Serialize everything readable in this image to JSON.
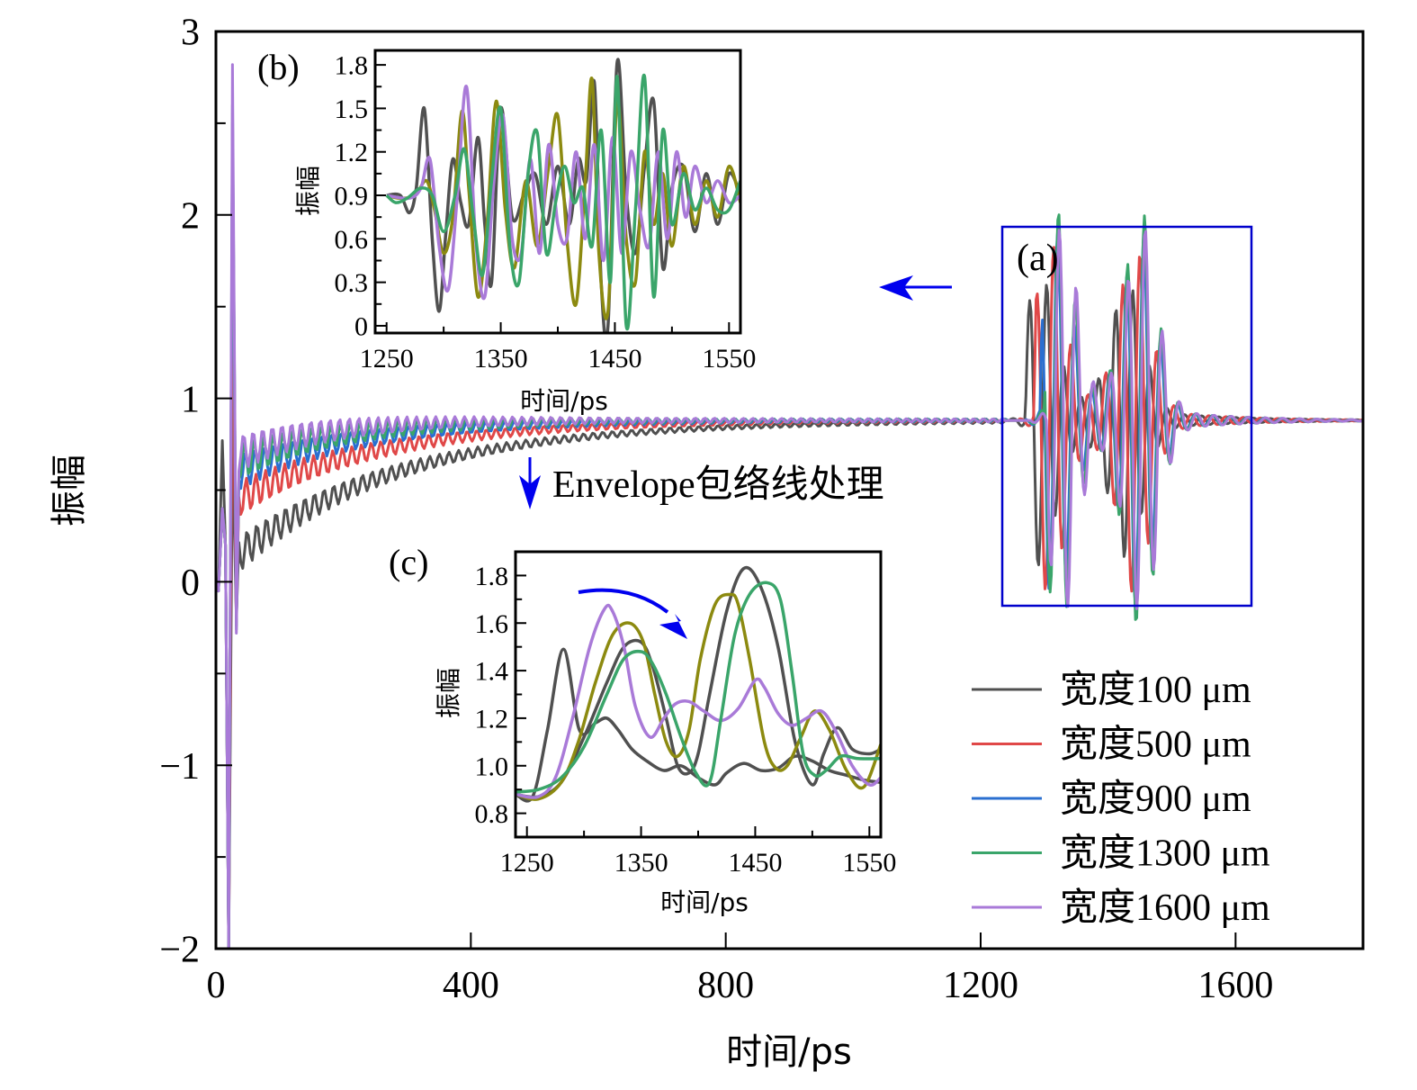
{
  "chart_data": [
    {
      "id": "main",
      "type": "line",
      "title": "",
      "xlabel": "时间/ps",
      "ylabel": "振幅",
      "xlim": [
        0,
        1800
      ],
      "ylim": [
        -2,
        3
      ],
      "xticks": [
        0,
        400,
        800,
        1200,
        1600
      ],
      "yticks": [
        3,
        2,
        1,
        0,
        -1,
        -2
      ],
      "ytick_labels": [
        "3",
        "2",
        "1",
        "0",
        "−1",
        "−2"
      ],
      "grid": false,
      "legend_position": "bottom-right",
      "legend": [
        {
          "label": "宽度100 μm",
          "color": "#505050"
        },
        {
          "label": "宽度500 μm",
          "color": "#e04848"
        },
        {
          "label": "宽度900 μm",
          "color": "#2a6fd0"
        },
        {
          "label": "宽度1300 μm",
          "color": "#3aa56a"
        },
        {
          "label": "宽度1600 μm",
          "color": "#a97ad8"
        }
      ],
      "series": [
        {
          "name": "宽度100 μm",
          "color": "#505050",
          "initial_peak": 0.77,
          "initial_min": -2.0,
          "early_baseline": 0.15,
          "baseline": 0.88,
          "echo_start": 1270,
          "echo_peak": 1.48,
          "echo_min": -0.1
        },
        {
          "name": "宽度500 μm",
          "color": "#e04848",
          "initial_peak": 1.5,
          "initial_min": -2.0,
          "early_baseline": 0.45,
          "baseline": 0.88,
          "echo_start": 1285,
          "echo_peak": 1.65,
          "echo_min": -0.15
        },
        {
          "name": "宽度900 μm",
          "color": "#2a6fd0",
          "initial_peak": 2.5,
          "initial_min": -2.0,
          "early_baseline": 0.6,
          "baseline": 0.88,
          "echo_start": 1295,
          "echo_peak": 1.72,
          "echo_min": -0.2
        },
        {
          "name": "宽度1300 μm",
          "color": "#3aa56a",
          "initial_peak": 2.6,
          "initial_min": -2.0,
          "early_baseline": 0.65,
          "baseline": 0.88,
          "echo_start": 1300,
          "echo_peak": 1.82,
          "echo_min": -0.25
        },
        {
          "name": "宽度1600 μm",
          "color": "#a97ad8",
          "initial_peak": 2.82,
          "initial_min": -2.0,
          "early_baseline": 0.7,
          "baseline": 0.88,
          "echo_start": 1305,
          "echo_peak": 1.75,
          "echo_min": -0.22
        }
      ],
      "annotations": [
        {
          "text": "(a)",
          "kind": "panel-label"
        },
        {
          "text": "Envelope包络线处理",
          "kind": "arrow-label",
          "arrow": "down"
        },
        {
          "text": "",
          "kind": "arrow",
          "arrow": "left"
        }
      ],
      "highlight_box": {
        "x_range": [
          1240,
          1530
        ],
        "y_range": [
          -0.1,
          1.9
        ],
        "color": "#0000cc"
      }
    },
    {
      "id": "inset-b",
      "type": "line",
      "panel_label": "(b)",
      "xlabel": "时间/ps",
      "ylabel": "振幅",
      "xlim": [
        1240,
        1560
      ],
      "ylim": [
        -0.05,
        1.9
      ],
      "xticks": [
        1250,
        1350,
        1450,
        1550
      ],
      "yticks": [
        0,
        0.3,
        0.6,
        0.9,
        1.2,
        1.5,
        1.8
      ],
      "ytick_labels": [
        "0",
        "0.3",
        "0.6",
        "0.9",
        "1.2",
        "1.5",
        "1.8"
      ],
      "grid": false,
      "series": [
        {
          "name": "dark-gray",
          "color": "#505050",
          "x": [
            1250,
            1262,
            1270,
            1276,
            1283,
            1290,
            1296,
            1302,
            1308,
            1315,
            1322,
            1330,
            1336,
            1342,
            1350,
            1360,
            1370,
            1380,
            1390,
            1400,
            1410,
            1418,
            1425,
            1432,
            1438,
            1444,
            1452,
            1460,
            1468,
            1476,
            1484,
            1492,
            1500,
            1510,
            1520,
            1530,
            1540,
            1550,
            1560
          ],
          "y": [
            0.9,
            0.9,
            0.78,
            0.95,
            1.5,
            0.6,
            0.1,
            0.65,
            1.15,
            0.85,
            0.7,
            1.3,
            0.7,
            0.3,
            1.5,
            0.75,
            0.9,
            1.05,
            0.7,
            1.1,
            0.7,
            1.15,
            1.0,
            1.68,
            0.3,
            0.0,
            1.82,
            0.9,
            0.5,
            1.1,
            1.55,
            0.4,
            0.95,
            1.1,
            0.65,
            1.05,
            0.7,
            1.05,
            0.9
          ]
        },
        {
          "name": "olive",
          "color": "#8c8a10",
          "x": [
            1250,
            1262,
            1275,
            1285,
            1292,
            1300,
            1308,
            1316,
            1322,
            1330,
            1338,
            1346,
            1354,
            1362,
            1372,
            1382,
            1392,
            1400,
            1408,
            1416,
            1424,
            1430,
            1436,
            1444,
            1452,
            1460,
            1468,
            1476,
            1484,
            1492,
            1500,
            1510,
            1520,
            1530,
            1540,
            1550,
            1560
          ],
          "y": [
            0.9,
            0.88,
            0.9,
            1.0,
            0.8,
            0.5,
            0.75,
            1.48,
            0.95,
            0.2,
            0.7,
            1.55,
            0.8,
            0.4,
            1.0,
            0.55,
            1.1,
            1.45,
            0.6,
            0.15,
            1.0,
            1.7,
            0.5,
            0.1,
            1.55,
            0.6,
            0.3,
            1.2,
            0.7,
            1.05,
            0.55,
            1.1,
            0.7,
            1.0,
            0.75,
            1.1,
            0.85
          ]
        },
        {
          "name": "purple",
          "color": "#a97ad8",
          "x": [
            1250,
            1270,
            1280,
            1288,
            1296,
            1304,
            1312,
            1320,
            1328,
            1336,
            1344,
            1352,
            1360,
            1368,
            1376,
            1384,
            1392,
            1400,
            1408,
            1416,
            1424,
            1432,
            1440,
            1448,
            1456,
            1464,
            1472,
            1480,
            1488,
            1496,
            1504,
            1512,
            1520,
            1530,
            1540,
            1550,
            1560
          ],
          "y": [
            0.9,
            0.88,
            0.95,
            1.15,
            0.55,
            0.25,
            0.9,
            1.65,
            0.6,
            0.2,
            1.0,
            1.45,
            0.6,
            0.5,
            1.15,
            0.5,
            1.25,
            0.7,
            0.6,
            1.2,
            0.6,
            1.25,
            0.45,
            1.3,
            0.5,
            1.2,
            0.8,
            0.55,
            1.2,
            0.6,
            1.2,
            0.75,
            1.1,
            0.85,
            1.0,
            0.85,
            0.9
          ]
        },
        {
          "name": "green",
          "color": "#3aa56a",
          "x": [
            1250,
            1258,
            1268,
            1280,
            1290,
            1300,
            1310,
            1318,
            1326,
            1334,
            1342,
            1350,
            1358,
            1366,
            1374,
            1382,
            1390,
            1398,
            1406,
            1414,
            1422,
            1430,
            1438,
            1446,
            1452,
            1460,
            1468,
            1476,
            1484,
            1492,
            1500,
            1510,
            1520,
            1530,
            1540,
            1550,
            1560
          ],
          "y": [
            0.9,
            0.85,
            0.88,
            0.95,
            0.9,
            0.65,
            0.9,
            1.22,
            0.75,
            0.35,
            1.0,
            1.5,
            0.55,
            0.3,
            1.05,
            1.33,
            0.5,
            0.85,
            1.1,
            0.85,
            0.95,
            0.55,
            1.35,
            0.3,
            1.72,
            0.0,
            0.8,
            1.72,
            0.2,
            1.35,
            0.7,
            1.05,
            0.8,
            0.95,
            0.8,
            0.8,
            1.0
          ]
        }
      ]
    },
    {
      "id": "inset-c",
      "type": "line",
      "panel_label": "(c)",
      "xlabel": "时间/ps",
      "ylabel": "振幅",
      "xlim": [
        1240,
        1560
      ],
      "ylim": [
        0.7,
        1.9
      ],
      "xticks": [
        1250,
        1350,
        1450,
        1550
      ],
      "yticks": [
        0.8,
        1.0,
        1.2,
        1.4,
        1.6,
        1.8
      ],
      "ytick_labels": [
        "0.8",
        "1.0",
        "1.2",
        "1.4",
        "1.6",
        "1.8"
      ],
      "grid": false,
      "annotation_arrow": "curved-right-down",
      "series": [
        {
          "name": "dark-gray-1",
          "color": "#505050",
          "x": [
            1240,
            1255,
            1268,
            1282,
            1296,
            1310,
            1320,
            1330,
            1342,
            1355,
            1370,
            1385,
            1400,
            1415,
            1425,
            1440,
            1455,
            1470,
            1485,
            1500,
            1515,
            1530,
            1545,
            1560
          ],
          "y": [
            0.88,
            0.87,
            1.15,
            1.49,
            1.15,
            1.18,
            1.2,
            1.15,
            1.07,
            1.02,
            0.98,
            1.0,
            0.95,
            0.92,
            0.97,
            1.01,
            0.98,
            0.99,
            1.04,
            1.02,
            0.98,
            0.96,
            0.94,
            0.93
          ]
        },
        {
          "name": "dark-gray-2",
          "color": "#505050",
          "x": [
            1240,
            1260,
            1280,
            1300,
            1320,
            1335,
            1350,
            1360,
            1372,
            1382,
            1392,
            1400,
            1410,
            1425,
            1440,
            1455,
            1470,
            1485,
            1500,
            1510,
            1522,
            1535,
            1550,
            1560
          ],
          "y": [
            0.88,
            0.87,
            0.93,
            1.12,
            1.35,
            1.5,
            1.52,
            1.42,
            1.2,
            1.0,
            0.97,
            1.05,
            1.3,
            1.65,
            1.83,
            1.75,
            1.5,
            1.1,
            0.92,
            1.05,
            1.16,
            1.07,
            1.05,
            1.07
          ]
        },
        {
          "name": "olive",
          "color": "#8c8a10",
          "x": [
            1240,
            1260,
            1280,
            1295,
            1310,
            1325,
            1340,
            1352,
            1362,
            1372,
            1382,
            1392,
            1402,
            1415,
            1428,
            1435,
            1445,
            1458,
            1468,
            1478,
            1490,
            1502,
            1515,
            1530,
            1545,
            1560
          ],
          "y": [
            0.88,
            0.86,
            0.93,
            1.1,
            1.35,
            1.55,
            1.6,
            1.52,
            1.3,
            1.1,
            1.04,
            1.15,
            1.45,
            1.68,
            1.72,
            1.68,
            1.45,
            1.1,
            0.99,
            1.0,
            1.12,
            1.23,
            1.15,
            0.98,
            0.91,
            1.09
          ]
        },
        {
          "name": "purple",
          "color": "#a97ad8",
          "x": [
            1240,
            1260,
            1275,
            1290,
            1305,
            1318,
            1325,
            1335,
            1345,
            1358,
            1370,
            1380,
            1392,
            1405,
            1420,
            1435,
            1450,
            1458,
            1470,
            1482,
            1495,
            1508,
            1520,
            1535,
            1550,
            1560
          ],
          "y": [
            0.88,
            0.87,
            0.95,
            1.2,
            1.5,
            1.66,
            1.65,
            1.5,
            1.25,
            1.12,
            1.2,
            1.26,
            1.27,
            1.23,
            1.19,
            1.24,
            1.36,
            1.33,
            1.22,
            1.17,
            1.2,
            1.23,
            1.15,
            1.0,
            0.92,
            0.95
          ]
        },
        {
          "name": "green",
          "color": "#3aa56a",
          "x": [
            1240,
            1260,
            1280,
            1300,
            1320,
            1335,
            1350,
            1360,
            1372,
            1385,
            1398,
            1410,
            1420,
            1432,
            1445,
            1460,
            1472,
            1482,
            1492,
            1502,
            1512,
            1525,
            1540,
            1560
          ],
          "y": [
            0.89,
            0.9,
            0.95,
            1.08,
            1.3,
            1.45,
            1.48,
            1.43,
            1.3,
            1.12,
            0.97,
            0.93,
            1.2,
            1.55,
            1.72,
            1.77,
            1.7,
            1.4,
            1.05,
            0.96,
            0.98,
            1.04,
            1.03,
            1.03
          ]
        }
      ]
    }
  ]
}
